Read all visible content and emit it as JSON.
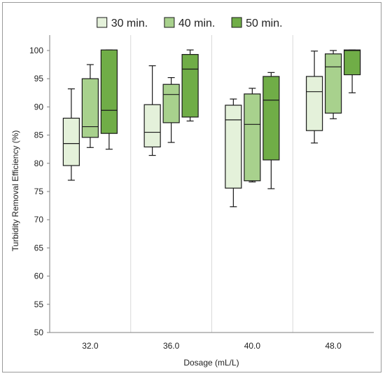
{
  "chart_data": {
    "type": "boxplot",
    "title": "",
    "xlabel": "Dosage (mL/L)",
    "ylabel": "Turbidity Removal Efficiency (%)",
    "ylim": [
      50,
      100
    ],
    "yticks": [
      50,
      55,
      60,
      65,
      70,
      75,
      80,
      85,
      90,
      95,
      100
    ],
    "grid": "vertical separators between categories",
    "legend": "top-center",
    "categories": [
      "32.0",
      "36.0",
      "40.0",
      "48.0"
    ],
    "series": [
      {
        "name": "30 min.",
        "color": "#e4f1da",
        "boxes": [
          {
            "min": 77.0,
            "q1": 79.6,
            "median": 83.5,
            "q3": 88.0,
            "max": 93.2
          },
          {
            "min": 81.4,
            "q1": 82.9,
            "median": 85.5,
            "q3": 90.4,
            "max": 97.3
          },
          {
            "min": 72.3,
            "q1": 75.6,
            "median": 87.7,
            "q3": 90.3,
            "max": 91.4
          },
          {
            "min": 83.6,
            "q1": 85.8,
            "median": 92.7,
            "q3": 95.4,
            "max": 99.9
          }
        ]
      },
      {
        "name": "40 min.",
        "color": "#a8d18d",
        "boxes": [
          {
            "min": 82.8,
            "q1": 84.6,
            "median": 86.5,
            "q3": 95.0,
            "max": 97.5
          },
          {
            "min": 83.7,
            "q1": 87.2,
            "median": 92.2,
            "q3": 94.0,
            "max": 95.2
          },
          {
            "min": 76.7,
            "q1": 76.9,
            "median": 86.9,
            "q3": 92.3,
            "max": 93.3
          },
          {
            "min": 87.9,
            "q1": 88.9,
            "median": 97.1,
            "q3": 99.4,
            "max": 100.0
          }
        ]
      },
      {
        "name": "50 min.",
        "color": "#70ad47",
        "boxes": [
          {
            "min": 82.5,
            "q1": 85.3,
            "median": 89.4,
            "q3": 100.1,
            "max": 100.1
          },
          {
            "min": 87.5,
            "q1": 88.2,
            "median": 96.7,
            "q3": 99.3,
            "max": 100.1
          },
          {
            "min": 75.5,
            "q1": 80.6,
            "median": 91.2,
            "q3": 95.4,
            "max": 96.1
          },
          {
            "min": 92.5,
            "q1": 95.7,
            "median": 100.0,
            "q3": 100.1,
            "max": 100.1
          }
        ]
      }
    ]
  }
}
